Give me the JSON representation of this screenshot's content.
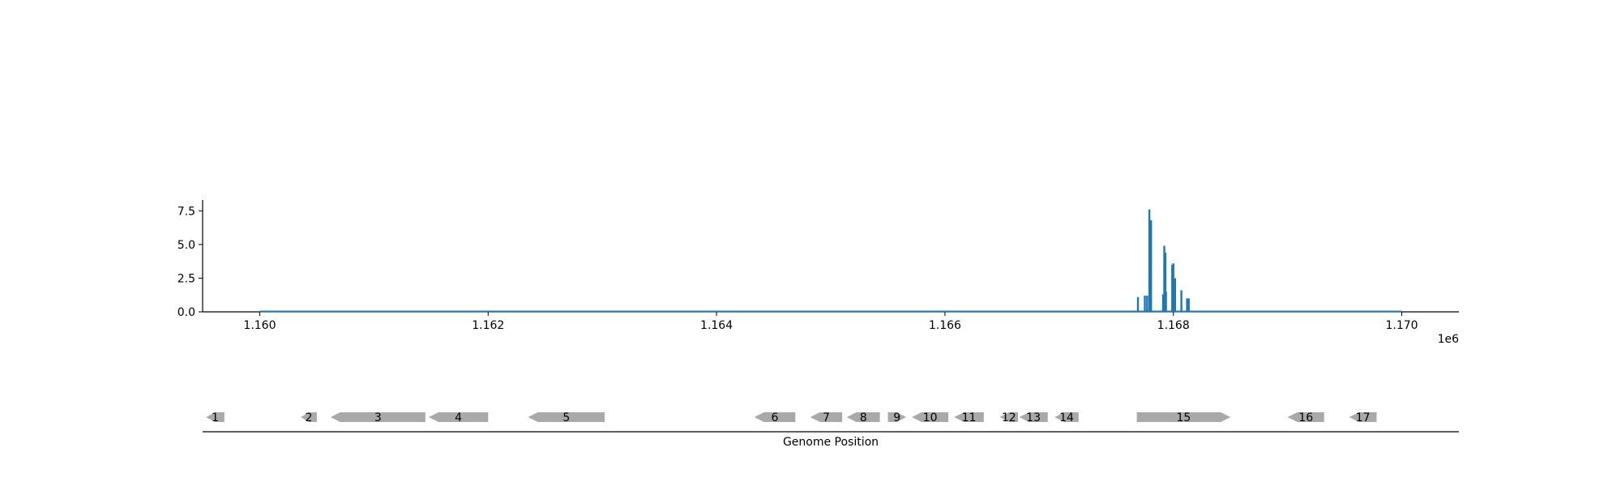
{
  "chart_data": {
    "type": "bar",
    "title": "",
    "xlabel": "Genome Position",
    "ylabel": "",
    "x_offset_label": "1e6",
    "xlim": [
      1159500,
      1170500
    ],
    "ylim": [
      0,
      8.3
    ],
    "x_ticks": [
      1160000,
      1162000,
      1164000,
      1166000,
      1168000,
      1170000
    ],
    "x_tick_labels": [
      "1.160",
      "1.162",
      "1.164",
      "1.166",
      "1.168",
      "1.170"
    ],
    "y_ticks": [
      0,
      2.5,
      5,
      7.5
    ],
    "y_tick_labels": [
      "0.0",
      "2.5",
      "5.0",
      "7.5"
    ],
    "grid": false,
    "series_color": "#1f77b4",
    "baseline_range": [
      1160000,
      1170000
    ],
    "bars": [
      {
        "x": 1167690,
        "y": 1.1
      },
      {
        "x": 1167750,
        "y": 1.2
      },
      {
        "x": 1167770,
        "y": 1.2
      },
      {
        "x": 1167790,
        "y": 7.6
      },
      {
        "x": 1167805,
        "y": 6.8
      },
      {
        "x": 1167910,
        "y": 1.3
      },
      {
        "x": 1167920,
        "y": 4.9
      },
      {
        "x": 1167930,
        "y": 4.4
      },
      {
        "x": 1167935,
        "y": 1.5
      },
      {
        "x": 1167990,
        "y": 3.5
      },
      {
        "x": 1168000,
        "y": 3.6
      },
      {
        "x": 1168015,
        "y": 2.5
      },
      {
        "x": 1168070,
        "y": 1.6
      },
      {
        "x": 1168120,
        "y": 1.0
      },
      {
        "x": 1168135,
        "y": 1.0
      }
    ],
    "genes": {
      "color": "#a9a9a9",
      "items": [
        {
          "label": "1",
          "start": 1159530,
          "end": 1159690,
          "strand": "-"
        },
        {
          "label": "2",
          "start": 1160360,
          "end": 1160500,
          "strand": "-"
        },
        {
          "label": "3",
          "start": 1160620,
          "end": 1161450,
          "strand": "-"
        },
        {
          "label": "4",
          "start": 1161480,
          "end": 1162000,
          "strand": "-"
        },
        {
          "label": "5",
          "start": 1162350,
          "end": 1163020,
          "strand": "-"
        },
        {
          "label": "6",
          "start": 1164330,
          "end": 1164690,
          "strand": "-"
        },
        {
          "label": "7",
          "start": 1164820,
          "end": 1165100,
          "strand": "-"
        },
        {
          "label": "8",
          "start": 1165140,
          "end": 1165430,
          "strand": "-"
        },
        {
          "label": "9",
          "start": 1165500,
          "end": 1165660,
          "strand": "+"
        },
        {
          "label": "10",
          "start": 1165710,
          "end": 1166030,
          "strand": "-"
        },
        {
          "label": "11",
          "start": 1166080,
          "end": 1166340,
          "strand": "-"
        },
        {
          "label": "12",
          "start": 1166480,
          "end": 1166640,
          "strand": "-"
        },
        {
          "label": "13",
          "start": 1166650,
          "end": 1166900,
          "strand": "-"
        },
        {
          "label": "14",
          "start": 1166960,
          "end": 1167170,
          "strand": "-"
        },
        {
          "label": "15",
          "start": 1167680,
          "end": 1168500,
          "strand": "+"
        },
        {
          "label": "16",
          "start": 1169000,
          "end": 1169320,
          "strand": "-"
        },
        {
          "label": "17",
          "start": 1169540,
          "end": 1169780,
          "strand": "-"
        }
      ]
    }
  }
}
